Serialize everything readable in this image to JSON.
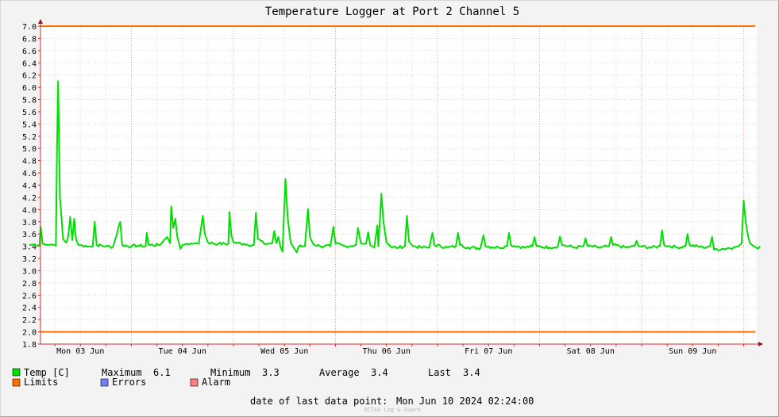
{
  "chart_data": {
    "type": "line",
    "title": "Temperature Logger at Port 2 Channel 5",
    "ylim": [
      1.8,
      7.0
    ],
    "y_ticks": [
      "1.8",
      "2.0",
      "2.2",
      "2.4",
      "2.6",
      "2.8",
      "3.0",
      "3.2",
      "3.4",
      "3.6",
      "3.8",
      "4.0",
      "4.2",
      "4.4",
      "4.6",
      "4.8",
      "5.0",
      "5.2",
      "5.4",
      "5.6",
      "5.8",
      "6.0",
      "6.2",
      "6.4",
      "6.6",
      "6.8",
      "7.0"
    ],
    "x_range_days": [
      0,
      7
    ],
    "day_labels": [
      "Mon 03 Jun",
      "Tue 04 Jun",
      "Wed 05 Jun",
      "Thu 06 Jun",
      "Fri 07 Jun",
      "Sat 08 Jun",
      "Sun 09 Jun"
    ],
    "limits": {
      "upper": 7.0,
      "lower": 2.0
    },
    "series": [
      {
        "name": "Temp [C]",
        "color": "#00e000",
        "baseline": 3.4,
        "points": [
          [
            0.0,
            3.42
          ],
          [
            0.04,
            3.43
          ],
          [
            0.07,
            3.41
          ],
          [
            0.1,
            3.42
          ],
          [
            0.11,
            3.72
          ],
          [
            0.13,
            3.44
          ],
          [
            0.18,
            3.42
          ],
          [
            0.22,
            3.43
          ],
          [
            0.26,
            3.41
          ],
          [
            0.27,
            4.9
          ],
          [
            0.282,
            6.1
          ],
          [
            0.3,
            4.2
          ],
          [
            0.33,
            3.52
          ],
          [
            0.36,
            3.46
          ],
          [
            0.38,
            3.55
          ],
          [
            0.4,
            3.88
          ],
          [
            0.42,
            3.5
          ],
          [
            0.44,
            3.85
          ],
          [
            0.45,
            3.62
          ],
          [
            0.46,
            3.5
          ],
          [
            0.48,
            3.42
          ],
          [
            0.55,
            3.41
          ],
          [
            0.62,
            3.39
          ],
          [
            0.64,
            3.8
          ],
          [
            0.66,
            3.42
          ],
          [
            0.75,
            3.4
          ],
          [
            0.82,
            3.39
          ],
          [
            0.89,
            3.8
          ],
          [
            0.91,
            3.42
          ],
          [
            1.0,
            3.4
          ],
          [
            1.06,
            3.41
          ],
          [
            1.14,
            3.4
          ],
          [
            1.15,
            3.62
          ],
          [
            1.17,
            3.42
          ],
          [
            1.28,
            3.42
          ],
          [
            1.32,
            3.5
          ],
          [
            1.35,
            3.55
          ],
          [
            1.38,
            3.45
          ],
          [
            1.39,
            4.05
          ],
          [
            1.41,
            3.7
          ],
          [
            1.43,
            3.85
          ],
          [
            1.45,
            3.55
          ],
          [
            1.48,
            3.36
          ],
          [
            1.5,
            3.42
          ],
          [
            1.55,
            3.44
          ],
          [
            1.62,
            3.45
          ],
          [
            1.66,
            3.44
          ],
          [
            1.7,
            3.9
          ],
          [
            1.72,
            3.6
          ],
          [
            1.75,
            3.46
          ],
          [
            1.85,
            3.44
          ],
          [
            1.95,
            3.44
          ],
          [
            1.96,
            3.96
          ],
          [
            1.98,
            3.58
          ],
          [
            2.0,
            3.46
          ],
          [
            2.1,
            3.44
          ],
          [
            2.2,
            3.42
          ],
          [
            2.22,
            3.95
          ],
          [
            2.24,
            3.52
          ],
          [
            2.3,
            3.44
          ],
          [
            2.38,
            3.45
          ],
          [
            2.4,
            3.65
          ],
          [
            2.42,
            3.45
          ],
          [
            2.44,
            3.55
          ],
          [
            2.46,
            3.4
          ],
          [
            2.48,
            3.31
          ],
          [
            2.51,
            4.5
          ],
          [
            2.53,
            3.9
          ],
          [
            2.56,
            3.46
          ],
          [
            2.6,
            3.35
          ],
          [
            2.62,
            3.3
          ],
          [
            2.64,
            3.4
          ],
          [
            2.7,
            3.4
          ],
          [
            2.73,
            4.01
          ],
          [
            2.75,
            3.55
          ],
          [
            2.78,
            3.44
          ],
          [
            2.85,
            3.4
          ],
          [
            2.95,
            3.4
          ],
          [
            2.98,
            3.72
          ],
          [
            3.0,
            3.44
          ],
          [
            3.1,
            3.4
          ],
          [
            3.2,
            3.42
          ],
          [
            3.22,
            3.7
          ],
          [
            3.25,
            3.44
          ],
          [
            3.3,
            3.44
          ],
          [
            3.32,
            3.63
          ],
          [
            3.34,
            3.42
          ],
          [
            3.38,
            3.38
          ],
          [
            3.41,
            3.74
          ],
          [
            3.42,
            3.4
          ],
          [
            3.45,
            4.26
          ],
          [
            3.47,
            3.8
          ],
          [
            3.5,
            3.46
          ],
          [
            3.55,
            3.38
          ],
          [
            3.62,
            3.38
          ],
          [
            3.68,
            3.4
          ],
          [
            3.7,
            3.9
          ],
          [
            3.72,
            3.48
          ],
          [
            3.76,
            3.4
          ],
          [
            3.85,
            3.38
          ],
          [
            3.92,
            3.38
          ],
          [
            3.95,
            3.62
          ],
          [
            3.97,
            3.42
          ],
          [
            4.1,
            3.38
          ],
          [
            4.18,
            3.4
          ],
          [
            4.2,
            3.62
          ],
          [
            4.22,
            3.42
          ],
          [
            4.3,
            3.38
          ],
          [
            4.42,
            3.37
          ],
          [
            4.45,
            3.58
          ],
          [
            4.47,
            3.4
          ],
          [
            4.6,
            3.38
          ],
          [
            4.68,
            3.4
          ],
          [
            4.7,
            3.62
          ],
          [
            4.72,
            3.42
          ],
          [
            4.85,
            3.38
          ],
          [
            4.93,
            3.4
          ],
          [
            4.95,
            3.55
          ],
          [
            4.97,
            3.4
          ],
          [
            5.1,
            3.38
          ],
          [
            5.18,
            3.4
          ],
          [
            5.2,
            3.56
          ],
          [
            5.22,
            3.42
          ],
          [
            5.35,
            3.38
          ],
          [
            5.43,
            3.4
          ],
          [
            5.45,
            3.53
          ],
          [
            5.47,
            3.4
          ],
          [
            5.6,
            3.38
          ],
          [
            5.68,
            3.4
          ],
          [
            5.7,
            3.55
          ],
          [
            5.72,
            3.42
          ],
          [
            5.85,
            3.38
          ],
          [
            5.93,
            3.4
          ],
          [
            5.95,
            3.49
          ],
          [
            5.97,
            3.4
          ],
          [
            6.1,
            3.38
          ],
          [
            6.18,
            3.4
          ],
          [
            6.2,
            3.66
          ],
          [
            6.22,
            3.42
          ],
          [
            6.35,
            3.38
          ],
          [
            6.43,
            3.4
          ],
          [
            6.45,
            3.6
          ],
          [
            6.47,
            3.42
          ],
          [
            6.6,
            3.38
          ],
          [
            6.67,
            3.4
          ],
          [
            6.69,
            3.55
          ],
          [
            6.71,
            3.34
          ],
          [
            6.8,
            3.36
          ],
          [
            6.9,
            3.38
          ],
          [
            6.95,
            3.4
          ],
          [
            6.98,
            3.45
          ],
          [
            7.0,
            4.15
          ],
          [
            7.02,
            3.8
          ],
          [
            7.04,
            3.6
          ],
          [
            7.06,
            3.45
          ],
          [
            7.1,
            3.4
          ],
          [
            7.14,
            3.36
          ],
          [
            7.16,
            3.4
          ]
        ]
      }
    ]
  },
  "legend": {
    "temp_label": "Temp [C]",
    "max_label": "Maximum",
    "max_value": "6.1",
    "min_label": "Minimum",
    "min_value": "3.3",
    "avg_label": "Average",
    "avg_value": "3.4",
    "last_label": "Last",
    "last_value": "3.4",
    "limits_label": "Limits",
    "errors_label": "Errors",
    "alarm_label": "Alarm",
    "colors": {
      "temp": "#00e000",
      "limits": "#ff7000",
      "errors": "#7080ff",
      "alarm": "#ff8080"
    }
  },
  "footer": {
    "last_point_label": "date of last data point:",
    "last_point_value": "Mon Jun 10 2024 02:24:00",
    "watermark": "OCTAA Log & Guard"
  }
}
